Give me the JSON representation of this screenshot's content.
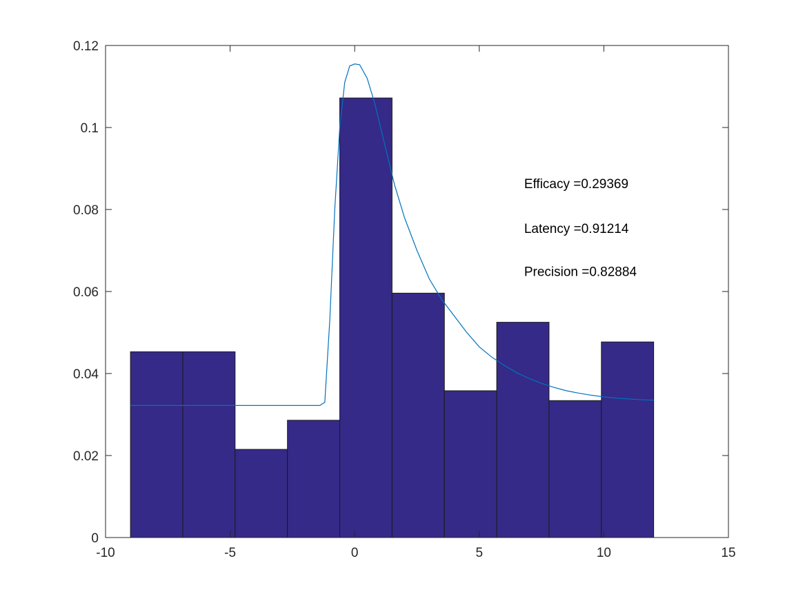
{
  "chart_data": {
    "type": "bar",
    "title": "",
    "xlabel": "",
    "ylabel": "",
    "xlim": [
      -10,
      15
    ],
    "ylim": [
      0,
      0.12
    ],
    "grid": false,
    "x_ticks": [
      -10,
      -5,
      0,
      5,
      10,
      15
    ],
    "y_ticks": [
      0,
      0.02,
      0.04,
      0.06,
      0.08,
      0.1,
      0.12
    ],
    "x_tick_labels": [
      "-10",
      "-5",
      "0",
      "5",
      "10",
      "15"
    ],
    "y_tick_labels": [
      "0",
      "0.02",
      "0.04",
      "0.06",
      "0.08",
      "0.1",
      "0.12"
    ],
    "bar_color": "#352A87",
    "bar_edge_color": "#1a1a1a",
    "bins": [
      {
        "x0": -9.0,
        "x1": -6.9,
        "value": 0.0453
      },
      {
        "x0": -6.9,
        "x1": -4.8,
        "value": 0.0453
      },
      {
        "x0": -4.8,
        "x1": -2.7,
        "value": 0.0215
      },
      {
        "x0": -2.7,
        "x1": -0.6,
        "value": 0.0286
      },
      {
        "x0": -0.6,
        "x1": 1.5,
        "value": 0.1072
      },
      {
        "x0": 1.5,
        "x1": 3.6,
        "value": 0.0596
      },
      {
        "x0": 3.6,
        "x1": 5.7,
        "value": 0.0358
      },
      {
        "x0": 5.7,
        "x1": 7.8,
        "value": 0.0525
      },
      {
        "x0": 7.8,
        "x1": 9.9,
        "value": 0.0334
      },
      {
        "x0": 9.9,
        "x1": 12.0,
        "value": 0.0477
      }
    ],
    "curve": {
      "color": "#0072BD",
      "points": [
        [
          -9.0,
          0.0322
        ],
        [
          -1.4,
          0.0322
        ],
        [
          -1.2,
          0.033
        ],
        [
          -1.0,
          0.053
        ],
        [
          -0.8,
          0.08
        ],
        [
          -0.6,
          0.1
        ],
        [
          -0.4,
          0.111
        ],
        [
          -0.2,
          0.115
        ],
        [
          0.0,
          0.1155
        ],
        [
          0.2,
          0.1153
        ],
        [
          0.5,
          0.112
        ],
        [
          0.8,
          0.106
        ],
        [
          1.2,
          0.096
        ],
        [
          1.6,
          0.086
        ],
        [
          2.0,
          0.078
        ],
        [
          2.5,
          0.07
        ],
        [
          3.0,
          0.063
        ],
        [
          3.5,
          0.058
        ],
        [
          4.0,
          0.054
        ],
        [
          4.5,
          0.05
        ],
        [
          5.0,
          0.0465
        ],
        [
          5.5,
          0.044
        ],
        [
          6.0,
          0.042
        ],
        [
          6.5,
          0.0402
        ],
        [
          7.0,
          0.0388
        ],
        [
          7.5,
          0.0376
        ],
        [
          8.0,
          0.0366
        ],
        [
          8.5,
          0.0358
        ],
        [
          9.0,
          0.0352
        ],
        [
          9.5,
          0.0347
        ],
        [
          10.0,
          0.0343
        ],
        [
          10.5,
          0.034
        ],
        [
          11.0,
          0.0338
        ],
        [
          11.5,
          0.0336
        ],
        [
          12.0,
          0.0335
        ]
      ]
    },
    "annotations": [
      {
        "text": "Efficacy =0.29369",
        "x": 6.8,
        "y": 0.0852
      },
      {
        "text": "Latency =0.91214",
        "x": 6.8,
        "y": 0.0743
      },
      {
        "text": "Precision =0.82884",
        "x": 6.8,
        "y": 0.0638
      }
    ]
  }
}
